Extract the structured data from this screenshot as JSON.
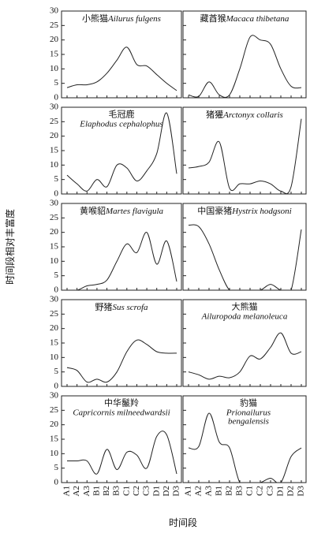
{
  "ylabel": "时间段相对丰富度",
  "xlabel": "时间段",
  "chart_data": [
    {
      "type": "line",
      "title_zh": "小熊猫",
      "title_latin": [
        "Ailurus fulgens"
      ],
      "categories": [
        "A1",
        "A2",
        "A3",
        "B1",
        "B2",
        "B3",
        "C1",
        "C2",
        "C3",
        "D1",
        "D2",
        "D3"
      ],
      "values": [
        3.5,
        4.5,
        4.5,
        5.5,
        8.5,
        13,
        17.5,
        11.5,
        11,
        8,
        5,
        2.5
      ],
      "ylim": [
        0,
        30
      ],
      "yticks": [
        0,
        5,
        10,
        15,
        20,
        25,
        30
      ],
      "color": "#222222"
    },
    {
      "type": "line",
      "title_zh": "藏酋猴",
      "title_latin": [
        "Macaca thibetana"
      ],
      "categories": [
        "A1",
        "A2",
        "A3",
        "B1",
        "B2",
        "B3",
        "C1",
        "C2",
        "C3",
        "D1",
        "D2",
        "D3"
      ],
      "values": [
        1,
        0.5,
        5.5,
        1,
        1,
        10,
        21,
        20,
        18.5,
        10,
        4,
        3.5
      ],
      "ylim": [
        0,
        30
      ],
      "yticks": [
        0,
        5,
        10,
        15,
        20,
        25,
        30
      ],
      "color": "#222222"
    },
    {
      "type": "line",
      "title_zh": "毛冠鹿",
      "title_latin": [
        "Elaphodus cephalophus"
      ],
      "categories": [
        "A1",
        "A2",
        "A3",
        "B1",
        "B2",
        "B3",
        "C1",
        "C2",
        "C3",
        "D1",
        "D2",
        "D3"
      ],
      "values": [
        6.5,
        3.5,
        1,
        5,
        2.5,
        10,
        9,
        4.5,
        8,
        14,
        28,
        7
      ],
      "ylim": [
        0,
        30
      ],
      "yticks": [
        0,
        5,
        10,
        15,
        20,
        25,
        30
      ],
      "color": "#222222"
    },
    {
      "type": "line",
      "title_zh": "猪獾",
      "title_latin": [
        "Arctonyx collaris"
      ],
      "categories": [
        "A1",
        "A2",
        "A3",
        "B1",
        "B2",
        "B3",
        "C1",
        "C2",
        "C3",
        "D1",
        "D2",
        "D3"
      ],
      "values": [
        9,
        9.5,
        11,
        18,
        2,
        3.5,
        3.5,
        4.5,
        3.5,
        1,
        2.5,
        26
      ],
      "ylim": [
        0,
        30
      ],
      "yticks": [
        0,
        5,
        10,
        15,
        20,
        25,
        30
      ],
      "color": "#222222"
    },
    {
      "type": "line",
      "title_zh": "黄喉貂",
      "title_latin": [
        "Martes flavigula"
      ],
      "categories": [
        "A1",
        "A2",
        "A3",
        "B1",
        "B2",
        "B3",
        "C1",
        "C2",
        "C3",
        "D1",
        "D2",
        "D3"
      ],
      "values": [
        0,
        0,
        1.5,
        2,
        3.5,
        10,
        16,
        13,
        20,
        9,
        17,
        3
      ],
      "ylim": [
        0,
        30
      ],
      "yticks": [
        0,
        5,
        10,
        15,
        20,
        25,
        30
      ],
      "color": "#222222"
    },
    {
      "type": "line",
      "title_zh": "中国豪猪",
      "title_latin": [
        "Hystrix hodgsoni"
      ],
      "categories": [
        "A1",
        "A2",
        "A3",
        "B1",
        "B2",
        "B3",
        "C1",
        "C2",
        "C3",
        "D1",
        "D2",
        "D3"
      ],
      "values": [
        22.5,
        22,
        16,
        7,
        0,
        0,
        0,
        0,
        2,
        0,
        0,
        21
      ],
      "ylim": [
        0,
        30
      ],
      "yticks": [
        0,
        5,
        10,
        15,
        20,
        25,
        30
      ],
      "color": "#222222"
    },
    {
      "type": "line",
      "title_zh": "野猪",
      "title_latin": [
        "Sus scrofa"
      ],
      "categories": [
        "A1",
        "A2",
        "A3",
        "B1",
        "B2",
        "B3",
        "C1",
        "C2",
        "C3",
        "D1",
        "D2",
        "D3"
      ],
      "values": [
        6.5,
        5.5,
        1.5,
        2.5,
        1.5,
        5,
        12,
        16,
        14.5,
        12,
        11.5,
        11.5
      ],
      "ylim": [
        0,
        30
      ],
      "yticks": [
        0,
        5,
        10,
        15,
        20,
        25,
        30
      ],
      "color": "#222222"
    },
    {
      "type": "line",
      "title_zh": "大熊猫",
      "title_latin": [
        "Ailuropoda melanoleuca"
      ],
      "categories": [
        "A1",
        "A2",
        "A3",
        "B1",
        "B2",
        "B3",
        "C1",
        "C2",
        "C3",
        "D1",
        "D2",
        "D3"
      ],
      "values": [
        5,
        4,
        2.5,
        3.5,
        3,
        5,
        10.5,
        9.5,
        13.5,
        18.5,
        11.5,
        12
      ],
      "ylim": [
        0,
        30
      ],
      "yticks": [
        0,
        5,
        10,
        15,
        20,
        25,
        30
      ],
      "color": "#222222"
    },
    {
      "type": "line",
      "title_zh": "中华鬣羚",
      "title_latin": [
        "Capricornis milneedwardsii"
      ],
      "categories": [
        "A1",
        "A2",
        "A3",
        "B1",
        "B2",
        "B3",
        "C1",
        "C2",
        "C3",
        "D1",
        "D2",
        "D3"
      ],
      "values": [
        7.5,
        7.5,
        7.5,
        3,
        11.5,
        4.5,
        10.5,
        9.5,
        5,
        16,
        16.5,
        3
      ],
      "ylim": [
        0,
        30
      ],
      "yticks": [
        0,
        5,
        10,
        15,
        20,
        25,
        30
      ],
      "color": "#222222"
    },
    {
      "type": "line",
      "title_zh": "豹猫",
      "title_latin": [
        "Prionailurus",
        "bengalensis"
      ],
      "categories": [
        "A1",
        "A2",
        "A3",
        "B1",
        "B2",
        "B3",
        "C1",
        "C2",
        "C3",
        "D1",
        "D2",
        "D3"
      ],
      "values": [
        12,
        12.5,
        24,
        14,
        12,
        0,
        0,
        0,
        1.5,
        0,
        9,
        12
      ],
      "ylim": [
        0,
        30
      ],
      "yticks": [
        0,
        5,
        10,
        15,
        20,
        25,
        30
      ],
      "color": "#222222"
    }
  ]
}
